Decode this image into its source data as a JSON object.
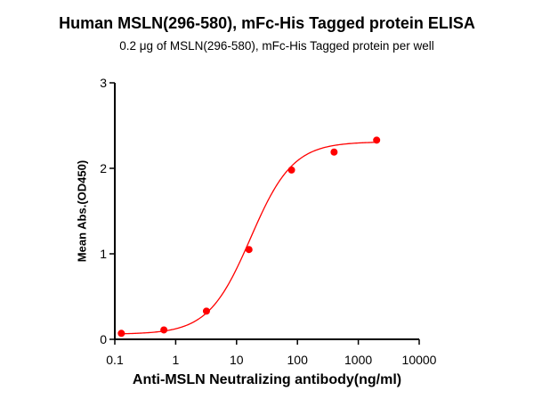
{
  "chart_data": {
    "type": "scatter",
    "title": "Human MSLN(296-580), mFc-His Tagged protein ELISA",
    "subtitle": "0.2 μg of MSLN(296-580), mFc-His Tagged protein per well",
    "xlabel": "Anti-MSLN Neutralizing antibody(ng/ml)",
    "ylabel": "Mean Abs.(OD450)",
    "xscale": "log",
    "xlim": [
      0.1,
      10000
    ],
    "ylim": [
      0,
      3
    ],
    "xticks": [
      "0.1",
      "1",
      "10",
      "100",
      "1000",
      "10000"
    ],
    "yticks": [
      "0",
      "1",
      "2",
      "3"
    ],
    "grid": false,
    "legend": null,
    "series": [
      {
        "name": "MSLN(296-580), mFc-His",
        "color": "#ff0000",
        "x": [
          0.128,
          0.64,
          3.2,
          16,
          80,
          400,
          2000
        ],
        "y": [
          0.07,
          0.11,
          0.33,
          1.05,
          1.98,
          2.19,
          2.33
        ],
        "fit": "4PL sigmoid"
      }
    ]
  }
}
